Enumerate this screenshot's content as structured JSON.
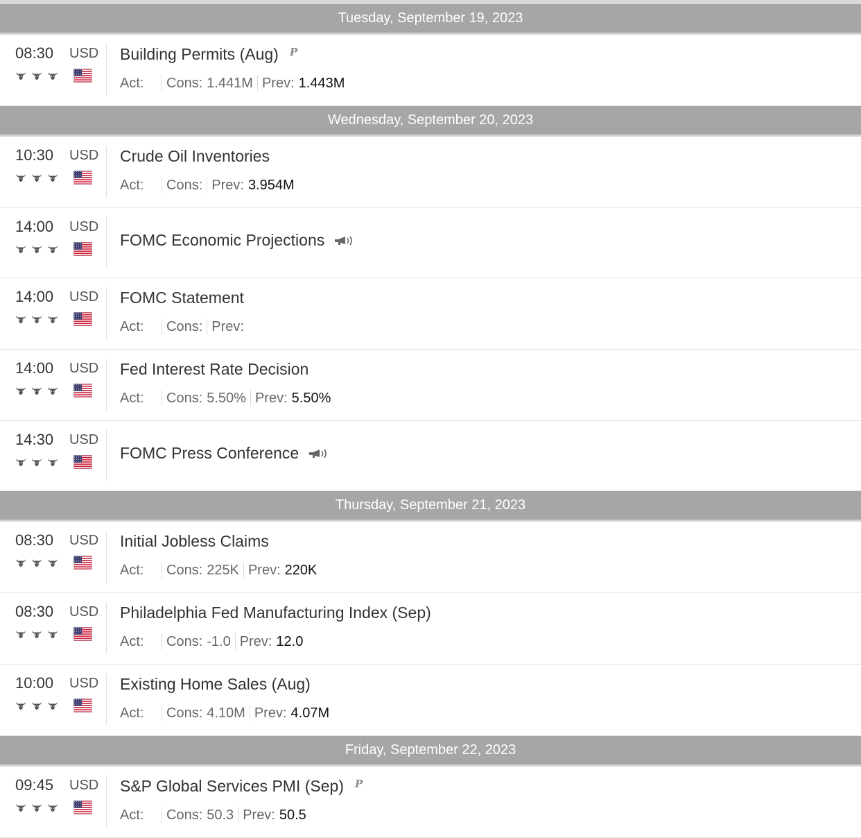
{
  "labels": {
    "actual": "Act:",
    "consensus": "Cons:",
    "previous": "Prev:"
  },
  "prelim_marker": "P",
  "days": [
    {
      "date": "Tuesday, September 19, 2023",
      "events": [
        {
          "time": "08:30",
          "currency": "USD",
          "impact": 3,
          "title": "Building Permits (Aug)",
          "marker": "preliminary",
          "actual": "",
          "consensus": "1.441M",
          "previous": "1.443M"
        }
      ]
    },
    {
      "date": "Wednesday, September 20, 2023",
      "events": [
        {
          "time": "10:30",
          "currency": "USD",
          "impact": 3,
          "title": "Crude Oil Inventories",
          "actual": "",
          "consensus": "",
          "previous": "3.954M"
        },
        {
          "time": "14:00",
          "currency": "USD",
          "impact": 3,
          "title": "FOMC Economic Projections",
          "marker": "speech"
        },
        {
          "time": "14:00",
          "currency": "USD",
          "impact": 3,
          "title": "FOMC Statement",
          "actual": "",
          "consensus": "",
          "previous": ""
        },
        {
          "time": "14:00",
          "currency": "USD",
          "impact": 3,
          "title": "Fed Interest Rate Decision",
          "actual": "",
          "consensus": "5.50%",
          "previous": "5.50%"
        },
        {
          "time": "14:30",
          "currency": "USD",
          "impact": 3,
          "title": "FOMC Press Conference",
          "marker": "speech"
        }
      ]
    },
    {
      "date": "Thursday, September 21, 2023",
      "events": [
        {
          "time": "08:30",
          "currency": "USD",
          "impact": 3,
          "title": "Initial Jobless Claims",
          "actual": "",
          "consensus": "225K",
          "previous": "220K"
        },
        {
          "time": "08:30",
          "currency": "USD",
          "impact": 3,
          "title": "Philadelphia Fed Manufacturing Index (Sep)",
          "actual": "",
          "consensus": "-1.0",
          "previous": "12.0"
        },
        {
          "time": "10:00",
          "currency": "USD",
          "impact": 3,
          "title": "Existing Home Sales (Aug)",
          "actual": "",
          "consensus": "4.10M",
          "previous": "4.07M"
        }
      ]
    },
    {
      "date": "Friday, September 22, 2023",
      "events": [
        {
          "time": "09:45",
          "currency": "USD",
          "impact": 3,
          "title": "S&P Global Services PMI (Sep)",
          "marker": "preliminary",
          "actual": "",
          "consensus": "50.3",
          "previous": "50.5"
        }
      ]
    }
  ],
  "icons": {
    "impact": "bull-icon",
    "flag": "us-flag-icon",
    "speech": "megaphone-icon"
  },
  "colors": {
    "header_bg": "#a6a6a6",
    "header_text": "#ffffff",
    "row_divider": "#e3e3e3",
    "flag_red": "#c8102e",
    "flag_blue": "#3c3b6e"
  }
}
